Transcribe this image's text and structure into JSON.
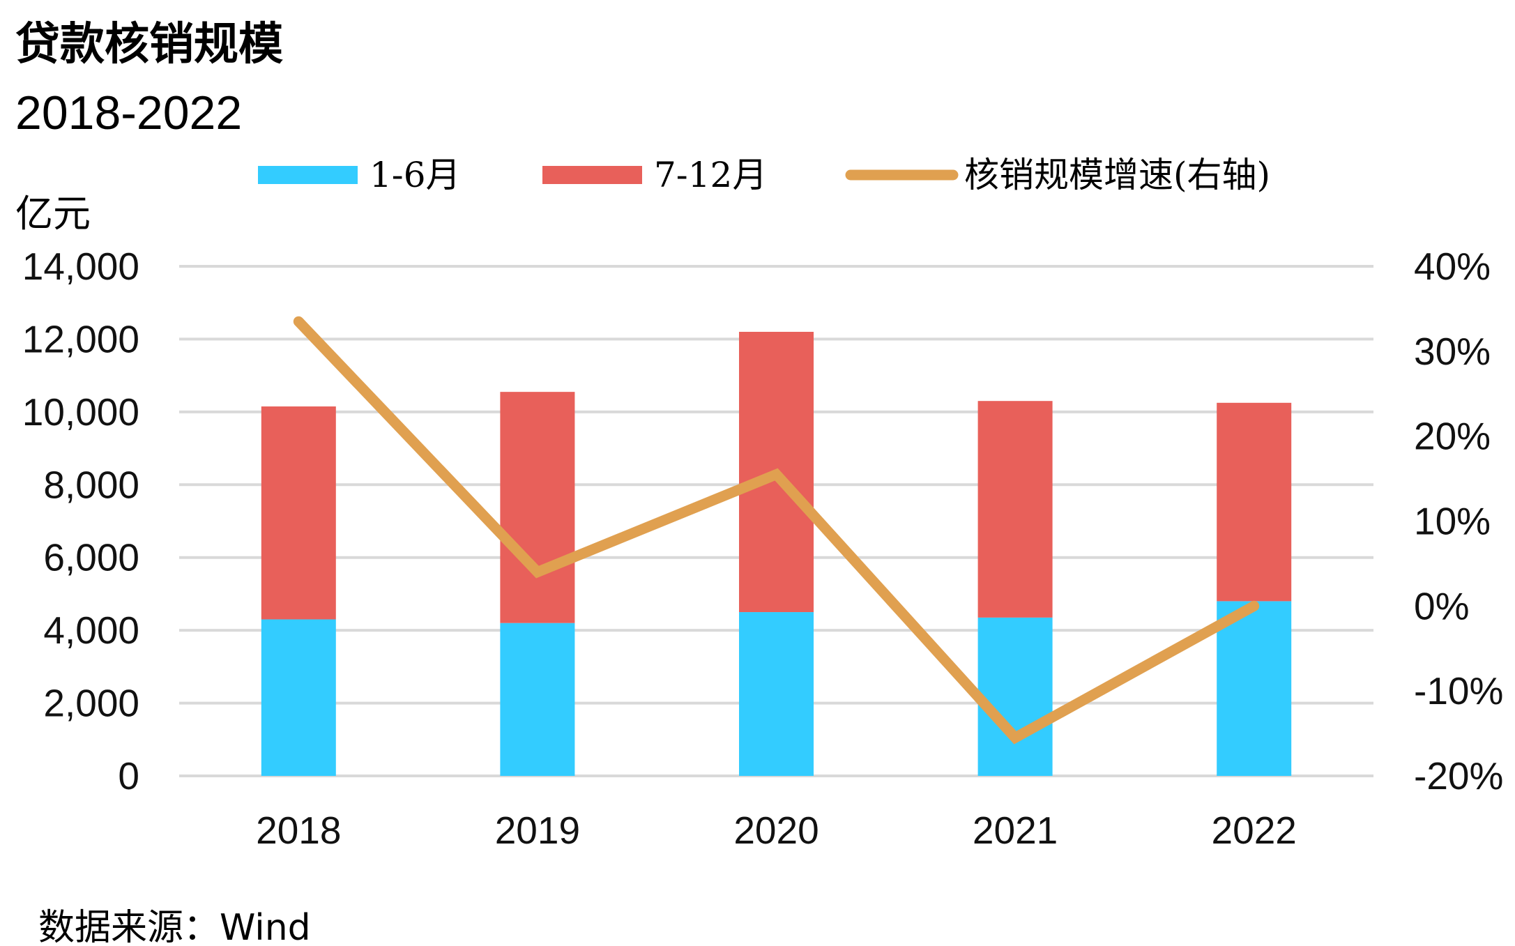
{
  "chart_data": {
    "type": "bar",
    "stacked": true,
    "title": "贷款核销规模",
    "subtitle": "2018-2022",
    "left_unit": "亿元",
    "source": "数据来源：Wind",
    "categories": [
      "2018",
      "2019",
      "2020",
      "2021",
      "2022"
    ],
    "y_left": {
      "min": 0,
      "max": 14000,
      "ticks": [
        0,
        2000,
        4000,
        6000,
        8000,
        10000,
        12000,
        14000
      ],
      "tick_labels": [
        "0",
        "2,000",
        "4,000",
        "6,000",
        "8,000",
        "10,000",
        "12,000",
        "14,000"
      ]
    },
    "y_right": {
      "min": -20,
      "max": 40,
      "ticks": [
        -20,
        -10,
        0,
        10,
        20,
        30,
        40
      ],
      "tick_labels": [
        "-20%",
        "-10%",
        "0%",
        "10%",
        "20%",
        "30%",
        "40%"
      ]
    },
    "grid": true,
    "legend_position": "top",
    "series": [
      {
        "name": "1-6月",
        "type": "bar",
        "axis": "left",
        "color": "#33CCFF",
        "values": [
          4300,
          4200,
          4500,
          4350,
          4800
        ]
      },
      {
        "name": "7-12月",
        "type": "bar",
        "axis": "left",
        "color": "#E8605A",
        "values": [
          5850,
          6350,
          7700,
          5950,
          5450
        ]
      },
      {
        "name": "核销规模增速(右轴)",
        "type": "line",
        "axis": "right",
        "color": "#E0A050",
        "values": [
          33.5,
          4,
          15.5,
          -15.5,
          0
        ]
      }
    ]
  }
}
